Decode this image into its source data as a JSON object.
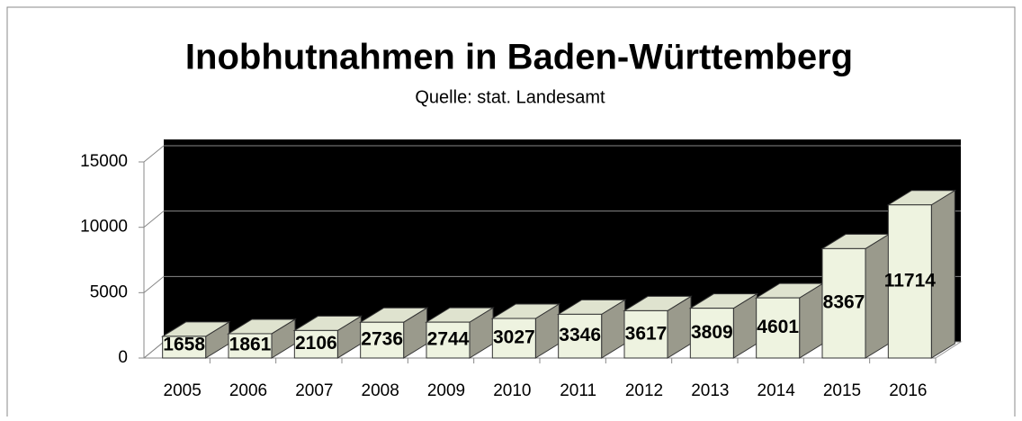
{
  "chart_data": {
    "type": "bar3d",
    "title": "Inobhutnahmen in Baden-Württemberg",
    "subtitle": "Quelle: stat. Landesamt",
    "categories": [
      "2005",
      "2006",
      "2007",
      "2008",
      "2009",
      "2010",
      "2011",
      "2012",
      "2013",
      "2014",
      "2015",
      "2016"
    ],
    "values": [
      1658,
      1861,
      2106,
      2736,
      2744,
      3027,
      3346,
      3617,
      3809,
      4601,
      8367,
      11714
    ],
    "color": "#eef3e0",
    "wall_color": "#000000",
    "ylim": [
      0,
      15000
    ],
    "yticks": [
      0,
      5000,
      10000,
      15000
    ],
    "grid": true
  }
}
